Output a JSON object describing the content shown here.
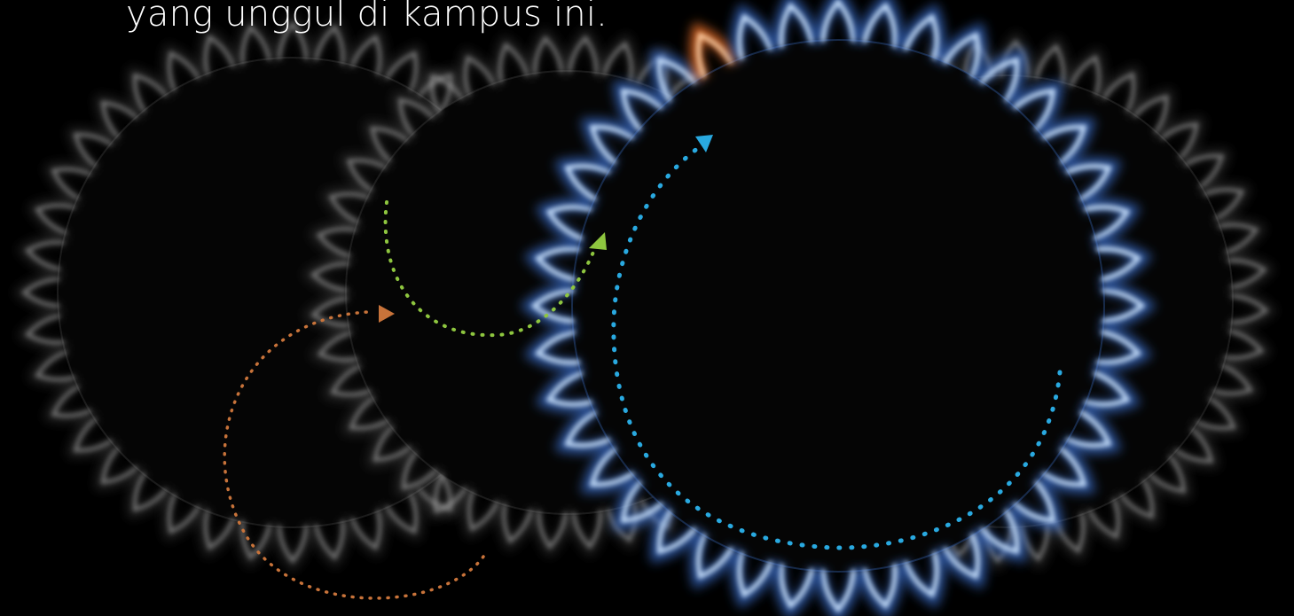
{
  "caption": "yang unggul di kampus ini.",
  "colors": {
    "background": "#000000",
    "text": "#ffffff",
    "flame_faded": "#8a8a8a",
    "flame_blue": "#3a6ec8",
    "flame_tip": "#cfe6ff",
    "flame_orange": "#ff7a2e",
    "path_orange": "#c8733a",
    "path_green": "#8ec63f",
    "path_blue": "#29a9e0"
  },
  "icons": [
    "gas-burner-ring-faded",
    "gas-burner-ring-faded",
    "gas-burner-ring-lit",
    "dotted-arrow-path"
  ]
}
